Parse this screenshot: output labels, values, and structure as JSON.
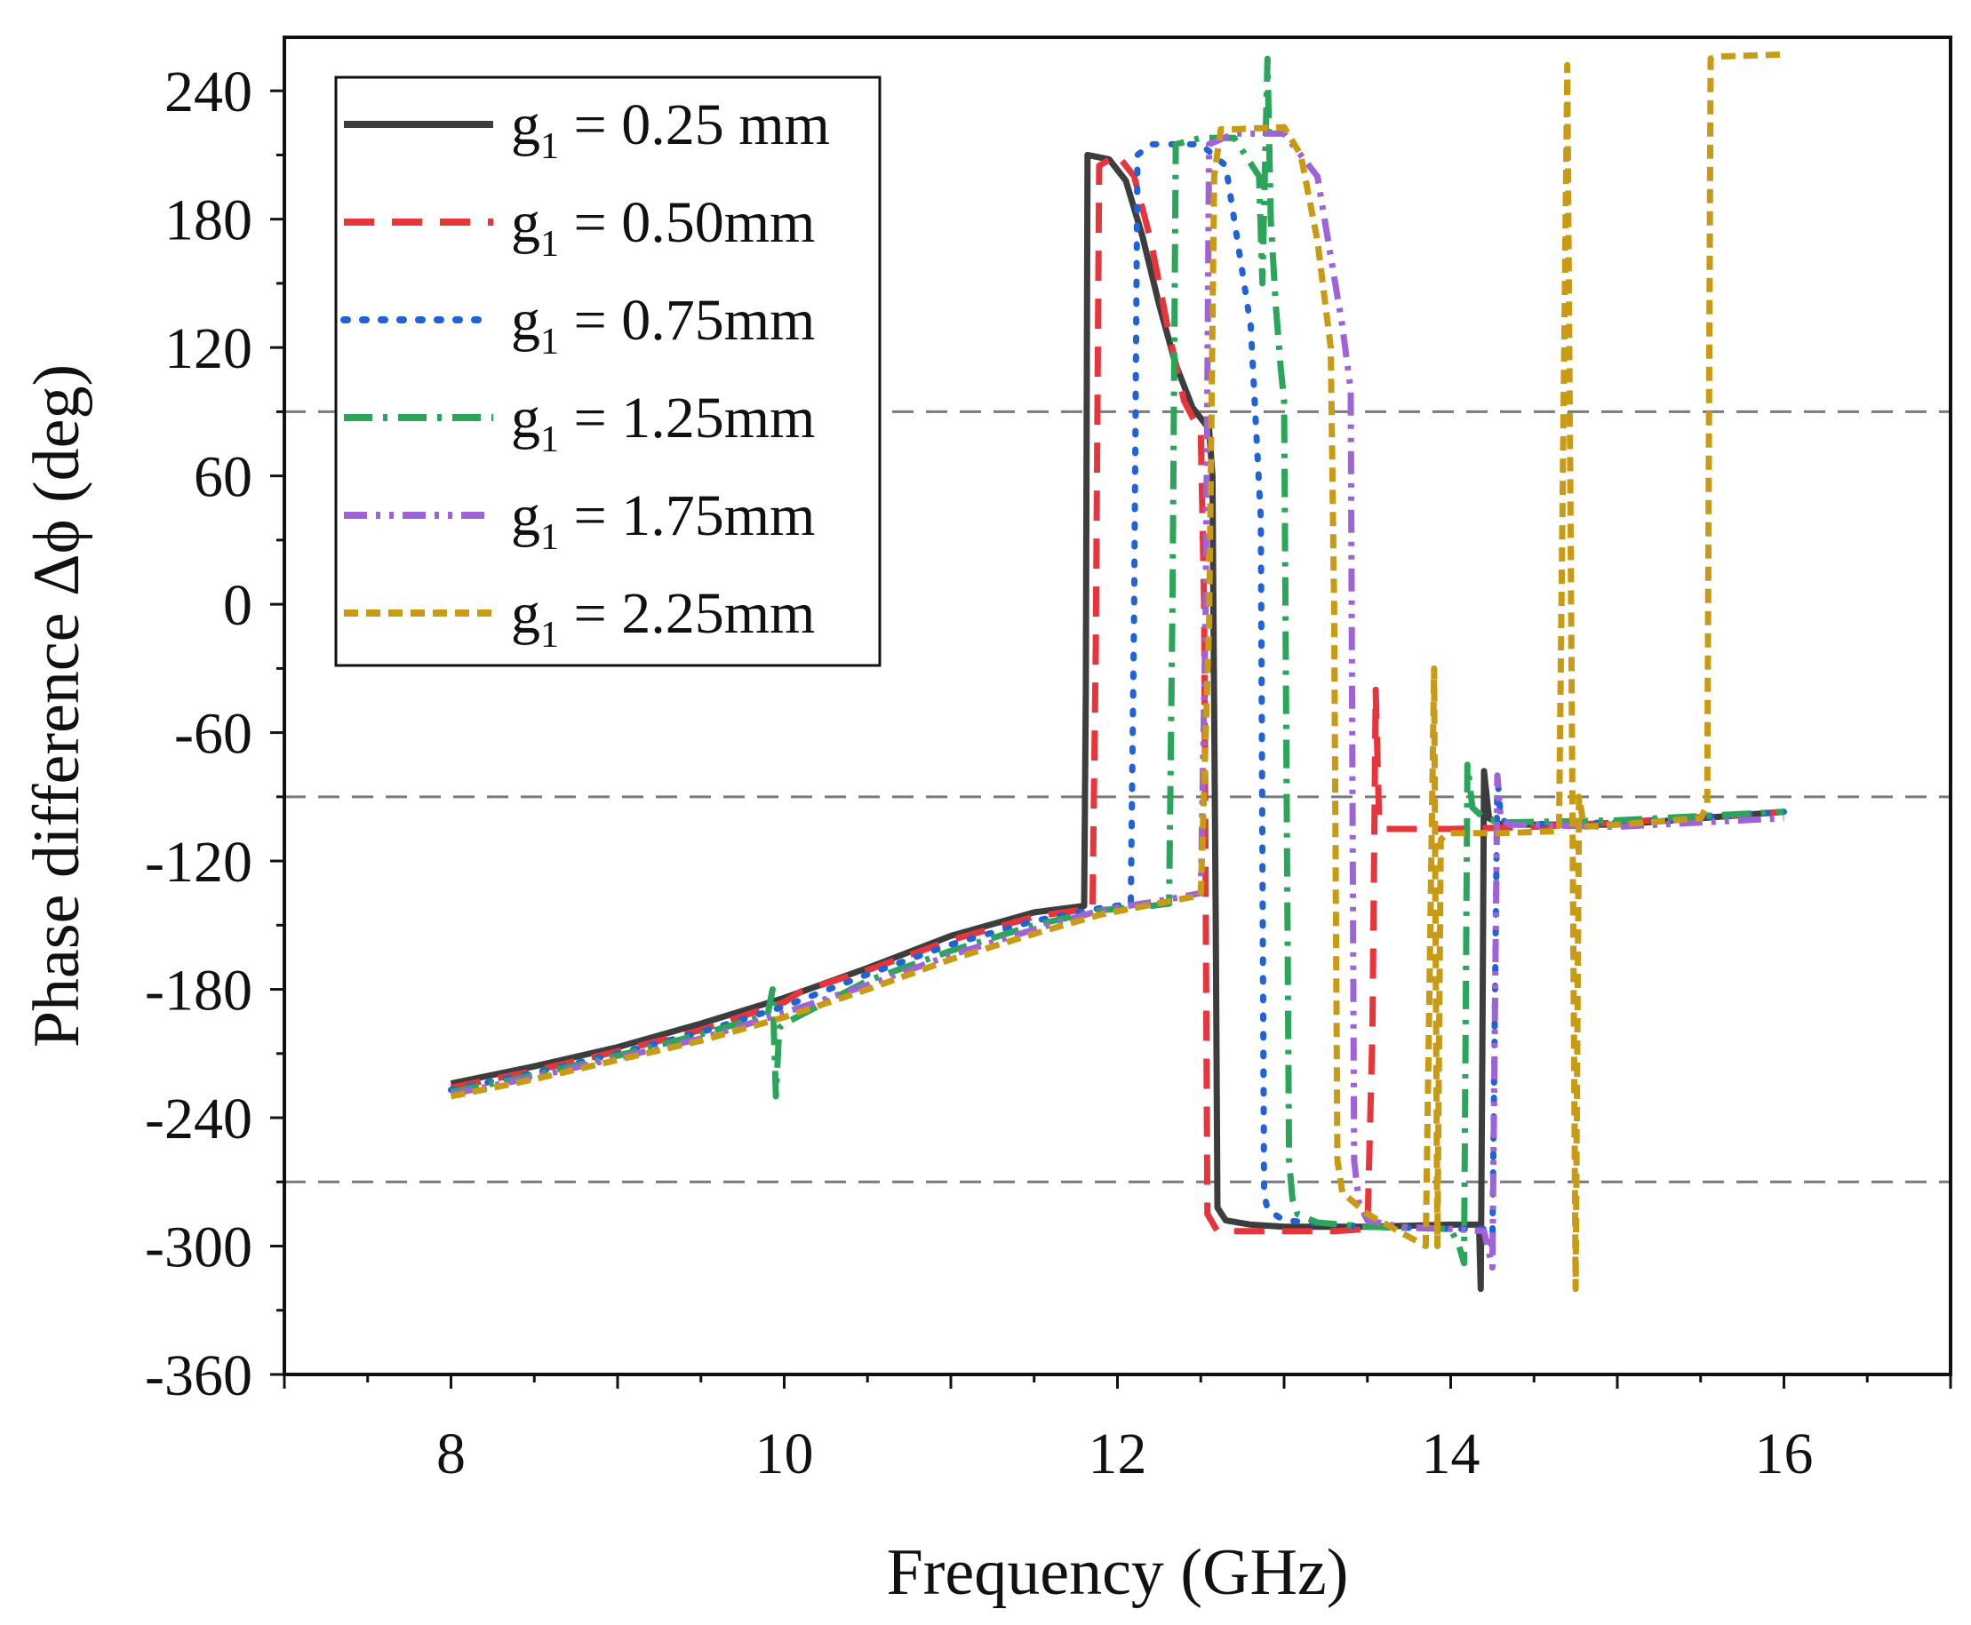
{
  "chart_data": {
    "type": "line",
    "title": "",
    "xlabel": "Frequency (GHz)",
    "ylabel": "Phase difference Δϕ (deg)",
    "xlim": [
      7,
      17
    ],
    "ylim": [
      -360,
      265
    ],
    "xticks": [
      8,
      10,
      12,
      14,
      16
    ],
    "yticks": [
      -360,
      -300,
      -240,
      -180,
      -120,
      -60,
      0,
      60,
      120,
      180,
      240
    ],
    "reference_lines": [
      90,
      -90,
      -270
    ],
    "legend_position": "top-left",
    "grid": false,
    "series": [
      {
        "name": "g1 = 0.25 mm",
        "legend_main": "g",
        "legend_sub": "1",
        "legend_rest": " = 0.25 mm",
        "color": "#3d3d3d",
        "dash": "solid",
        "x": [
          8.0,
          8.5,
          9.0,
          9.5,
          10.0,
          10.5,
          11.0,
          11.5,
          11.8,
          11.81,
          11.82,
          11.95,
          12.05,
          12.15,
          12.25,
          12.35,
          12.45,
          12.55,
          12.57,
          12.59,
          12.6,
          12.65,
          12.8,
          13.0,
          13.5,
          14.0,
          14.17,
          14.18,
          14.19,
          14.2,
          14.23,
          14.3,
          15.0,
          15.5,
          16.0
        ],
        "y": [
          -224,
          -216,
          -207,
          -196,
          -184,
          -170,
          -155,
          -144,
          -141,
          -40,
          210,
          208,
          198,
          172,
          140,
          112,
          92,
          82,
          60,
          -150,
          -282,
          -288,
          -290,
          -291,
          -291,
          -290,
          -290,
          -320,
          -210,
          -78,
          -100,
          -103,
          -103,
          -100,
          -97
        ]
      },
      {
        "name": "g1 = 0.50mm",
        "legend_main": "g",
        "legend_sub": "1",
        "legend_rest": " = 0.50mm",
        "color": "#e8353b",
        "dash": "long-dash",
        "x": [
          8.0,
          8.5,
          9.0,
          9.5,
          10.0,
          10.1,
          10.5,
          11.0,
          11.5,
          11.85,
          11.87,
          11.89,
          12.0,
          12.1,
          12.2,
          12.3,
          12.4,
          12.5,
          12.52,
          12.54,
          12.6,
          12.8,
          13.0,
          13.3,
          13.5,
          13.53,
          13.55,
          13.57,
          13.6,
          14.0,
          14.5,
          15.0,
          16.0
        ],
        "y": [
          -226,
          -218,
          -209,
          -199,
          -186,
          -181,
          -171,
          -157,
          -146,
          -142,
          -20,
          205,
          210,
          200,
          170,
          130,
          95,
          80,
          0,
          -285,
          -293,
          -293,
          -293,
          -293,
          -292,
          -200,
          -40,
          -100,
          -105,
          -105,
          -104,
          -102,
          -97
        ]
      },
      {
        "name": "g1 = 0.75mm",
        "legend_main": "g",
        "legend_sub": "1",
        "legend_rest": " = 0.75mm",
        "color": "#1f63d6",
        "dash": "dotted",
        "x": [
          8.0,
          8.5,
          9.0,
          9.5,
          10.0,
          10.5,
          11.0,
          11.5,
          11.9,
          12.08,
          12.1,
          12.12,
          12.2,
          12.5,
          12.65,
          12.8,
          12.86,
          12.88,
          12.9,
          13.0,
          13.5,
          14.0,
          14.2,
          14.25,
          14.28,
          14.3,
          14.35,
          15.0,
          16.0
        ],
        "y": [
          -227,
          -219,
          -210,
          -200,
          -188,
          -173,
          -159,
          -148,
          -142,
          -140,
          0,
          210,
          215,
          215,
          205,
          130,
          40,
          -275,
          -283,
          -288,
          -291,
          -292,
          -292,
          -300,
          -80,
          -100,
          -103,
          -102,
          -97
        ]
      },
      {
        "name": "g1 = 1.25mm",
        "legend_main": "g",
        "legend_sub": "1",
        "legend_rest": " = 1.25mm",
        "color": "#2aa55a",
        "dash": "dash-dot",
        "x": [
          8.0,
          8.5,
          9.0,
          9.5,
          9.9,
          9.93,
          9.95,
          9.97,
          10.0,
          10.5,
          11.0,
          11.5,
          11.9,
          12.2,
          12.31,
          12.33,
          12.35,
          12.5,
          12.7,
          12.85,
          12.87,
          12.9,
          12.92,
          12.95,
          12.98,
          13.0,
          13.03,
          13.05,
          13.08,
          13.2,
          13.5,
          14.0,
          14.05,
          14.08,
          14.1,
          14.13,
          14.2,
          14.3,
          15.0,
          16.0
        ],
        "y": [
          -228,
          -220,
          -211,
          -201,
          -192,
          -180,
          -230,
          -198,
          -196,
          -176,
          -162,
          -150,
          -143,
          -141,
          -140,
          0,
          215,
          218,
          218,
          200,
          150,
          255,
          180,
          140,
          110,
          95,
          -260,
          -278,
          -285,
          -289,
          -291,
          -292,
          -300,
          -308,
          -75,
          -95,
          -100,
          -102,
          -101,
          -97
        ]
      },
      {
        "name": "g1 = 1.75mm",
        "legend_main": "g",
        "legend_sub": "1",
        "legend_rest": " = 1.75mm",
        "color": "#9f63d8",
        "dash": "dash-dot-dot",
        "x": [
          8.0,
          8.5,
          9.0,
          9.5,
          10.0,
          10.5,
          11.0,
          11.5,
          11.9,
          12.3,
          12.5,
          12.53,
          12.55,
          12.7,
          13.0,
          13.2,
          13.35,
          13.4,
          13.42,
          13.45,
          13.5,
          13.7,
          14.0,
          14.2,
          14.25,
          14.28,
          14.3,
          14.35,
          15.0,
          16.0
        ],
        "y": [
          -229,
          -221,
          -212,
          -203,
          -191,
          -178,
          -164,
          -152,
          -143,
          -138,
          -135,
          0,
          215,
          220,
          220,
          200,
          130,
          100,
          -260,
          -280,
          -288,
          -291,
          -292,
          -293,
          -310,
          -80,
          -100,
          -103,
          -104,
          -100
        ]
      },
      {
        "name": "g1 = 2.25mm",
        "legend_main": "g",
        "legend_sub": "1",
        "legend_rest": " = 2.25mm",
        "color": "#c99a14",
        "dash": "short-dash",
        "x": [
          8.0,
          8.5,
          9.0,
          9.5,
          10.0,
          10.5,
          11.0,
          11.5,
          11.9,
          12.3,
          12.5,
          12.55,
          12.58,
          12.62,
          12.7,
          13.0,
          13.1,
          13.2,
          13.28,
          13.3,
          13.32,
          13.35,
          13.5,
          13.85,
          13.9,
          13.92,
          13.94,
          13.97,
          14.0,
          14.3,
          14.65,
          14.7,
          14.72,
          14.75,
          14.77,
          14.8,
          15.0,
          15.5,
          15.54,
          15.56,
          15.6,
          16.0
        ],
        "y": [
          -230,
          -222,
          -213,
          -204,
          -193,
          -180,
          -166,
          -154,
          -145,
          -139,
          -136,
          -10,
          200,
          222,
          222,
          223,
          210,
          170,
          120,
          0,
          -260,
          -275,
          -285,
          -300,
          -30,
          -300,
          -110,
          -108,
          -107,
          -107,
          -106,
          252,
          30,
          -320,
          -90,
          -104,
          -103,
          -100,
          -94,
          255,
          256,
          257
        ]
      }
    ]
  }
}
